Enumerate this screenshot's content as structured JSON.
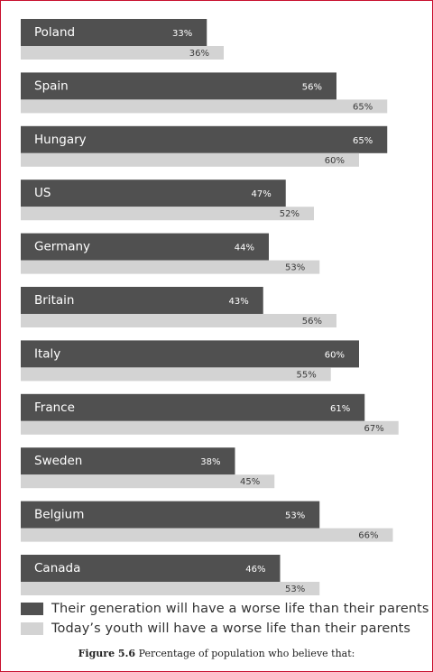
{
  "colors": {
    "series1": "#505050",
    "series2": "#d3d3d3",
    "frame": "#c8102e"
  },
  "chart_data": {
    "type": "bar",
    "orientation": "horizontal",
    "categories": [
      "Poland",
      "Spain",
      "Hungary",
      "US",
      "Germany",
      "Britain",
      "Italy",
      "France",
      "Sweden",
      "Belgium",
      "Canada"
    ],
    "series": [
      {
        "name": "Their generation will have a worse life than their parents",
        "values": [
          33,
          56,
          65,
          47,
          44,
          43,
          60,
          61,
          38,
          53,
          46
        ]
      },
      {
        "name": "Today’s youth will have a worse life than their parents",
        "values": [
          36,
          65,
          60,
          52,
          53,
          56,
          55,
          67,
          45,
          66,
          53
        ]
      }
    ],
    "value_suffix": "%",
    "xlim": [
      0,
      100
    ],
    "grid": false,
    "legend_position": "bottom"
  },
  "legend": {
    "item1": "Their generation will have a worse life than their parents",
    "item2": "Today’s youth will have a worse life than their parents"
  },
  "caption": {
    "label": "Figure 5.6",
    "text": " Percentage of population who believe that:"
  }
}
